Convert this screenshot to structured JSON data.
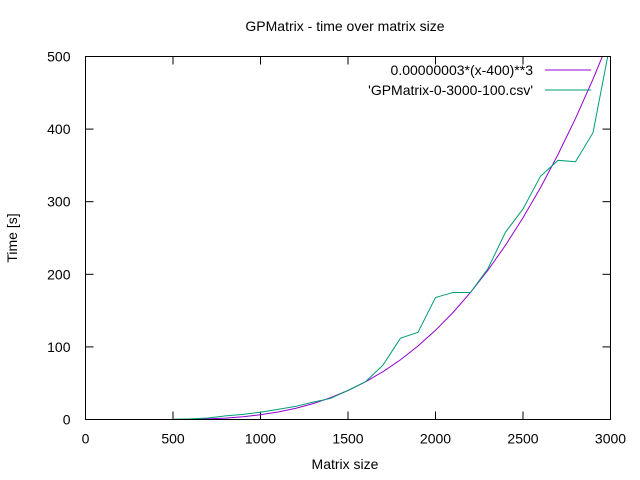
{
  "chart_data": {
    "type": "line",
    "title": "GPMatrix - time over matrix size",
    "xlabel": "Matrix size",
    "ylabel": "Time [s]",
    "xlim": [
      0,
      3000
    ],
    "ylim": [
      0,
      500
    ],
    "xticks": [
      0,
      500,
      1000,
      1500,
      2000,
      2500,
      3000
    ],
    "yticks": [
      0,
      100,
      200,
      300,
      400,
      500
    ],
    "grid": false,
    "legend_position": "top-right",
    "series": [
      {
        "name": "0.00000003*(x-400)**3",
        "color": "#9400d3",
        "function": "0.00000003*(x-400)**3",
        "x": [
          400,
          500,
          600,
          700,
          800,
          900,
          1000,
          1100,
          1200,
          1300,
          1400,
          1500,
          1600,
          1700,
          1800,
          1900,
          2000,
          2100,
          2200,
          2300,
          2400,
          2500,
          2600,
          2700,
          2800,
          2900,
          3000
        ],
        "y": [
          0.0,
          0.03,
          0.24,
          0.81,
          1.92,
          3.75,
          6.48,
          10.29,
          15.36,
          21.87,
          30.0,
          39.93,
          51.84,
          65.91,
          82.32,
          101.25,
          122.88,
          147.39,
          174.96,
          205.77,
          240.0,
          277.83,
          319.44,
          365.01,
          414.72,
          468.75,
          527.28
        ]
      },
      {
        "name": "'GPMatrix-0-3000-100.csv'",
        "color": "#009e73",
        "x": [
          500,
          600,
          700,
          800,
          900,
          1000,
          1100,
          1200,
          1300,
          1400,
          1500,
          1600,
          1700,
          1800,
          1900,
          2000,
          2100,
          2200,
          2300,
          2400,
          2500,
          2600,
          2700,
          2800,
          2900,
          3000
        ],
        "y": [
          0.3,
          0.8,
          2,
          5,
          7,
          10,
          14,
          18,
          24,
          29,
          40,
          52,
          75,
          112,
          120,
          168,
          175,
          175,
          208,
          258,
          290,
          335,
          357,
          355,
          395,
          520
        ]
      }
    ]
  }
}
